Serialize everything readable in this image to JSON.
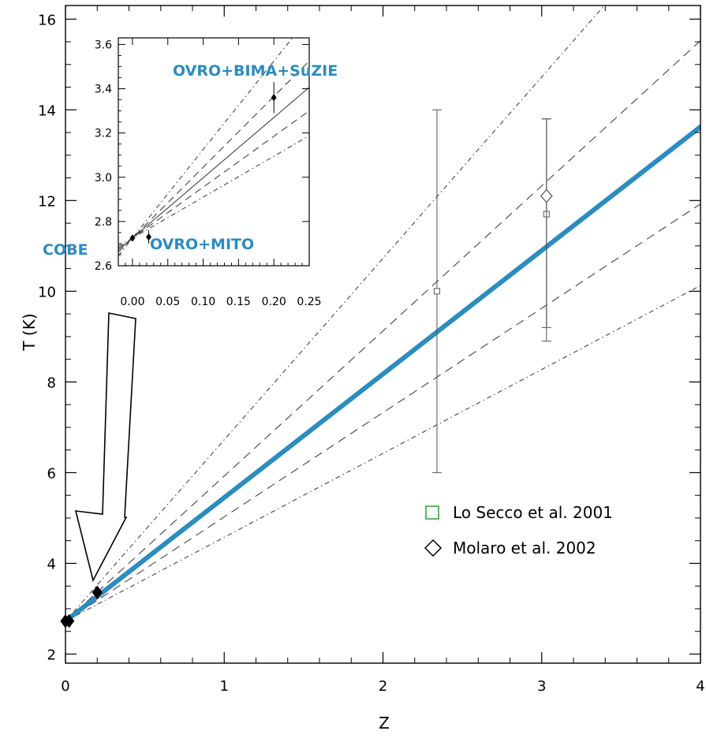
{
  "chart_data": {
    "type": "line",
    "xlabel": "Z",
    "ylabel": "T  (K)",
    "xlim": [
      0,
      4
    ],
    "ylim": [
      1.8,
      16.3
    ],
    "x_ticks": [
      "0",
      "1",
      "2",
      "3",
      "4"
    ],
    "x_tick_values": [
      0,
      1,
      2,
      3,
      4
    ],
    "y_ticks": [
      "2",
      "4",
      "6",
      "8",
      "10",
      "12",
      "14",
      "16"
    ],
    "y_tick_values": [
      2,
      4,
      6,
      8,
      10,
      12,
      14,
      16
    ],
    "grid": false,
    "legend_position": "right",
    "main_line": {
      "t0": 2.725,
      "slope": 2.725,
      "color": "#2b8cbf"
    },
    "dashed_lines": [
      {
        "slope": 3.2
      },
      {
        "slope": 2.3
      }
    ],
    "dashdot_lines": [
      {
        "slope": 4.0
      },
      {
        "slope": 1.85
      }
    ],
    "points": [
      {
        "name": "COBE",
        "x": 0.0,
        "y": 2.725,
        "marker": "diamond-filled"
      },
      {
        "name": "OVRO+MITO",
        "x": 0.023,
        "y": 2.73,
        "marker": "diamond-filled"
      },
      {
        "name": "OVRO+BIMA+SuZIE",
        "x": 0.2,
        "y": 3.36,
        "marker": "diamond-filled"
      },
      {
        "name": "Lo Secco et al. 2001",
        "x": 2.34,
        "y": 10.0,
        "ylo": 6.0,
        "yhi": 14.0,
        "marker": "square"
      },
      {
        "name": "Lo Secco et al. 2001",
        "x": 3.03,
        "y": 11.7,
        "ylo": 9.2,
        "yhi": 13.8,
        "marker": "square"
      },
      {
        "name": "Molaro et al. 2002",
        "x": 3.03,
        "y": 12.1,
        "ylo": 8.9,
        "yhi": 13.8,
        "marker": "diamond"
      }
    ],
    "inset": {
      "xlim": [
        -0.02,
        0.25
      ],
      "ylim": [
        2.6,
        3.63
      ],
      "x_ticks": [
        "0.00",
        "0.05",
        "0.10",
        "0.15",
        "0.20",
        "0.25"
      ],
      "x_tick_values": [
        0.0,
        0.05,
        0.1,
        0.15,
        0.2,
        0.25
      ],
      "y_ticks": [
        "2.6",
        "2.8",
        "3.0",
        "3.2",
        "3.4",
        "3.6"
      ],
      "y_tick_values": [
        2.6,
        2.8,
        3.0,
        3.2,
        3.4,
        3.6
      ],
      "points": [
        {
          "x": 0.0,
          "y": 2.725,
          "err": 0.002
        },
        {
          "x": 0.023,
          "y": 2.73,
          "err": 0.03
        },
        {
          "x": 0.2,
          "y": 3.36,
          "err": 0.07
        }
      ]
    },
    "annotations": {
      "cobe": "COBE",
      "ovro_mito": "OVRO+MITO",
      "ovro_bima_suzie": "OVRO+BIMA+SuZIE"
    },
    "legend": [
      {
        "label": "Lo Secco et al. 2001",
        "marker": "square",
        "color": "#2ca02c"
      },
      {
        "label": "Molaro et al. 2002",
        "marker": "diamond",
        "color": "#000000"
      }
    ]
  }
}
